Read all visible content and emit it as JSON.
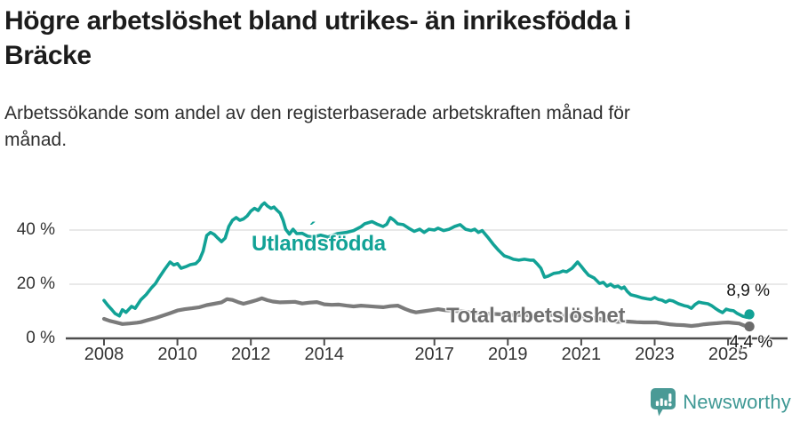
{
  "header": {
    "title_lines": [
      "Högre arbetslöshet bland utrikes- än inrikesfödda i",
      "Bräcke"
    ],
    "subtitle_lines": [
      "Arbetssökande som andel av den registerbaserade arbetskraften månad för",
      "månad."
    ]
  },
  "chart_data": {
    "type": "line",
    "title": "Högre arbetslöshet bland utrikes- än inrikesfödda i Bräcke",
    "subtitle": "Arbetssökande som andel av den registerbaserade arbetskraften månad för månad.",
    "xlabel": "",
    "ylabel": "",
    "x_axis": {
      "ticks": [
        2008,
        2010,
        2012,
        2014,
        2017,
        2019,
        2021,
        2023,
        2025
      ],
      "range": [
        2007.9,
        2025.8
      ]
    },
    "y_axis": {
      "ticks": [
        0,
        20,
        40
      ],
      "tick_labels": [
        "0 %",
        "20 %",
        "40 %"
      ],
      "gridlines": [
        20,
        40
      ],
      "range": [
        0,
        52
      ]
    },
    "grid": "horizontal-only",
    "legend_position": "inline-labels",
    "colors": {
      "utlandsfodda": "#12a296",
      "total": "#7b7b7b",
      "gridline": "#dcdcdc",
      "axis": "#4d4d4d"
    },
    "annotations": {
      "utlandsfodda_label": "Utlandsfödda",
      "accent_mark": "´",
      "total_label": "Total arbetslöshet",
      "end_label_utlandsfodda": "8,9 %",
      "end_label_total": "4,4 %"
    },
    "series": [
      {
        "name": "Utlandsfödda",
        "color": "#12a296",
        "end_value": 8.9,
        "points": [
          [
            2008.0,
            14.0
          ],
          [
            2008.1,
            12.3
          ],
          [
            2008.2,
            10.8
          ],
          [
            2008.3,
            9.2
          ],
          [
            2008.42,
            8.3
          ],
          [
            2008.5,
            10.6
          ],
          [
            2008.6,
            9.6
          ],
          [
            2008.75,
            11.8
          ],
          [
            2008.85,
            11.1
          ],
          [
            2009.0,
            14.2
          ],
          [
            2009.15,
            16.2
          ],
          [
            2009.3,
            18.8
          ],
          [
            2009.4,
            20.2
          ],
          [
            2009.5,
            22.4
          ],
          [
            2009.65,
            25.4
          ],
          [
            2009.8,
            28.2
          ],
          [
            2009.9,
            27.1
          ],
          [
            2010.0,
            27.6
          ],
          [
            2010.1,
            25.9
          ],
          [
            2010.25,
            26.6
          ],
          [
            2010.35,
            27.2
          ],
          [
            2010.5,
            27.6
          ],
          [
            2010.6,
            29.0
          ],
          [
            2010.7,
            32.2
          ],
          [
            2010.8,
            38.0
          ],
          [
            2010.9,
            39.1
          ],
          [
            2011.0,
            38.4
          ],
          [
            2011.1,
            37.0
          ],
          [
            2011.2,
            35.7
          ],
          [
            2011.3,
            37.0
          ],
          [
            2011.4,
            41.3
          ],
          [
            2011.5,
            43.6
          ],
          [
            2011.6,
            44.6
          ],
          [
            2011.7,
            43.6
          ],
          [
            2011.8,
            44.1
          ],
          [
            2011.9,
            45.2
          ],
          [
            2012.0,
            47.0
          ],
          [
            2012.1,
            48.0
          ],
          [
            2012.2,
            47.2
          ],
          [
            2012.3,
            49.2
          ],
          [
            2012.37,
            50.0
          ],
          [
            2012.45,
            48.9
          ],
          [
            2012.55,
            48.0
          ],
          [
            2012.63,
            48.5
          ],
          [
            2012.72,
            47.2
          ],
          [
            2012.8,
            46.2
          ],
          [
            2012.88,
            43.6
          ],
          [
            2012.95,
            40.3
          ],
          [
            2013.05,
            38.5
          ],
          [
            2013.15,
            40.3
          ],
          [
            2013.25,
            38.7
          ],
          [
            2013.4,
            38.8
          ],
          [
            2013.55,
            37.7
          ],
          [
            2013.7,
            37.4
          ],
          [
            2013.9,
            38.1
          ],
          [
            2014.1,
            37.4
          ],
          [
            2014.35,
            38.7
          ],
          [
            2014.6,
            39.1
          ],
          [
            2014.8,
            39.8
          ],
          [
            2015.0,
            41.2
          ],
          [
            2015.1,
            42.3
          ],
          [
            2015.3,
            43.1
          ],
          [
            2015.45,
            42.1
          ],
          [
            2015.6,
            41.3
          ],
          [
            2015.7,
            42.1
          ],
          [
            2015.8,
            44.6
          ],
          [
            2015.9,
            43.6
          ],
          [
            2016.0,
            42.3
          ],
          [
            2016.15,
            42.0
          ],
          [
            2016.3,
            40.7
          ],
          [
            2016.45,
            39.5
          ],
          [
            2016.6,
            40.3
          ],
          [
            2016.72,
            39.1
          ],
          [
            2016.85,
            40.3
          ],
          [
            2017.0,
            40.0
          ],
          [
            2017.1,
            40.7
          ],
          [
            2017.25,
            39.8
          ],
          [
            2017.4,
            40.3
          ],
          [
            2017.55,
            41.3
          ],
          [
            2017.7,
            42.0
          ],
          [
            2017.85,
            40.3
          ],
          [
            2018.0,
            39.8
          ],
          [
            2018.1,
            40.3
          ],
          [
            2018.2,
            39.1
          ],
          [
            2018.3,
            39.8
          ],
          [
            2018.45,
            37.4
          ],
          [
            2018.6,
            34.8
          ],
          [
            2018.75,
            32.5
          ],
          [
            2018.9,
            30.5
          ],
          [
            2019.05,
            29.8
          ],
          [
            2019.15,
            29.2
          ],
          [
            2019.3,
            28.9
          ],
          [
            2019.45,
            29.2
          ],
          [
            2019.6,
            28.9
          ],
          [
            2019.7,
            28.9
          ],
          [
            2019.8,
            27.5
          ],
          [
            2019.9,
            25.9
          ],
          [
            2020.0,
            22.6
          ],
          [
            2020.1,
            23.0
          ],
          [
            2020.25,
            24.0
          ],
          [
            2020.4,
            24.3
          ],
          [
            2020.5,
            24.9
          ],
          [
            2020.6,
            24.6
          ],
          [
            2020.75,
            25.9
          ],
          [
            2020.9,
            28.2
          ],
          [
            2021.0,
            26.6
          ],
          [
            2021.1,
            24.9
          ],
          [
            2021.2,
            23.3
          ],
          [
            2021.35,
            22.3
          ],
          [
            2021.5,
            20.3
          ],
          [
            2021.6,
            20.7
          ],
          [
            2021.7,
            19.3
          ],
          [
            2021.8,
            20.0
          ],
          [
            2021.9,
            19.0
          ],
          [
            2022.0,
            19.3
          ],
          [
            2022.1,
            18.4
          ],
          [
            2022.17,
            19.0
          ],
          [
            2022.25,
            17.4
          ],
          [
            2022.35,
            16.1
          ],
          [
            2022.5,
            15.6
          ],
          [
            2022.65,
            15.0
          ],
          [
            2022.8,
            14.6
          ],
          [
            2022.9,
            14.4
          ],
          [
            2023.0,
            15.1
          ],
          [
            2023.1,
            14.4
          ],
          [
            2023.2,
            14.1
          ],
          [
            2023.3,
            13.4
          ],
          [
            2023.4,
            14.1
          ],
          [
            2023.5,
            13.8
          ],
          [
            2023.65,
            12.8
          ],
          [
            2023.8,
            12.1
          ],
          [
            2023.9,
            11.8
          ],
          [
            2024.0,
            11.1
          ],
          [
            2024.1,
            12.5
          ],
          [
            2024.2,
            13.4
          ],
          [
            2024.3,
            13.1
          ],
          [
            2024.45,
            12.8
          ],
          [
            2024.55,
            12.1
          ],
          [
            2024.65,
            11.1
          ],
          [
            2024.75,
            10.2
          ],
          [
            2024.85,
            9.5
          ],
          [
            2024.95,
            10.8
          ],
          [
            2025.05,
            10.4
          ],
          [
            2025.15,
            10.2
          ],
          [
            2025.25,
            9.2
          ],
          [
            2025.4,
            8.2
          ],
          [
            2025.5,
            7.8
          ],
          [
            2025.58,
            8.9
          ]
        ]
      },
      {
        "name": "Total arbetslöshet",
        "color": "#7b7b7b",
        "end_value": 4.4,
        "points": [
          [
            2008.0,
            7.2
          ],
          [
            2008.15,
            6.5
          ],
          [
            2008.3,
            6.0
          ],
          [
            2008.5,
            5.3
          ],
          [
            2008.7,
            5.5
          ],
          [
            2008.9,
            5.8
          ],
          [
            2009.0,
            6.0
          ],
          [
            2009.2,
            6.8
          ],
          [
            2009.4,
            7.5
          ],
          [
            2009.6,
            8.4
          ],
          [
            2009.8,
            9.3
          ],
          [
            2010.0,
            10.3
          ],
          [
            2010.2,
            10.8
          ],
          [
            2010.4,
            11.1
          ],
          [
            2010.6,
            11.5
          ],
          [
            2010.8,
            12.3
          ],
          [
            2011.0,
            12.8
          ],
          [
            2011.2,
            13.3
          ],
          [
            2011.35,
            14.5
          ],
          [
            2011.5,
            14.2
          ],
          [
            2011.65,
            13.4
          ],
          [
            2011.8,
            12.8
          ],
          [
            2012.0,
            13.5
          ],
          [
            2012.15,
            14.1
          ],
          [
            2012.3,
            14.8
          ],
          [
            2012.45,
            14.1
          ],
          [
            2012.6,
            13.6
          ],
          [
            2012.8,
            13.3
          ],
          [
            2013.0,
            13.4
          ],
          [
            2013.2,
            13.5
          ],
          [
            2013.4,
            12.9
          ],
          [
            2013.6,
            13.2
          ],
          [
            2013.8,
            13.4
          ],
          [
            2014.0,
            12.6
          ],
          [
            2014.2,
            12.4
          ],
          [
            2014.4,
            12.5
          ],
          [
            2014.6,
            12.1
          ],
          [
            2014.8,
            11.8
          ],
          [
            2015.0,
            12.1
          ],
          [
            2015.2,
            11.9
          ],
          [
            2015.4,
            11.7
          ],
          [
            2015.6,
            11.5
          ],
          [
            2015.8,
            11.9
          ],
          [
            2016.0,
            12.1
          ],
          [
            2016.2,
            10.9
          ],
          [
            2016.35,
            10.1
          ],
          [
            2016.5,
            9.6
          ],
          [
            2016.7,
            10.0
          ],
          [
            2016.9,
            10.4
          ],
          [
            2017.1,
            10.8
          ],
          [
            2017.3,
            10.4
          ],
          [
            2017.5,
            10.2
          ],
          [
            2017.7,
            10.0
          ],
          [
            2017.9,
            9.7
          ],
          [
            2018.2,
            9.4
          ],
          [
            2018.5,
            9.1
          ],
          [
            2018.8,
            8.9
          ],
          [
            2019.1,
            8.7
          ],
          [
            2019.4,
            8.6
          ],
          [
            2019.7,
            8.5
          ],
          [
            2020.0,
            8.7
          ],
          [
            2020.3,
            8.6
          ],
          [
            2020.6,
            8.4
          ],
          [
            2020.9,
            8.2
          ],
          [
            2021.2,
            7.8
          ],
          [
            2021.5,
            7.2
          ],
          [
            2021.8,
            6.6
          ],
          [
            2022.0,
            6.1
          ],
          [
            2022.15,
            6.3
          ],
          [
            2022.3,
            6.2
          ],
          [
            2022.5,
            6.0
          ],
          [
            2022.7,
            5.9
          ],
          [
            2022.9,
            5.9
          ],
          [
            2023.05,
            5.9
          ],
          [
            2023.2,
            5.6
          ],
          [
            2023.4,
            5.2
          ],
          [
            2023.6,
            5.0
          ],
          [
            2023.8,
            4.9
          ],
          [
            2024.0,
            4.6
          ],
          [
            2024.2,
            4.9
          ],
          [
            2024.35,
            5.2
          ],
          [
            2024.5,
            5.4
          ],
          [
            2024.7,
            5.6
          ],
          [
            2024.85,
            5.8
          ],
          [
            2025.0,
            5.9
          ],
          [
            2025.15,
            5.7
          ],
          [
            2025.3,
            5.5
          ],
          [
            2025.45,
            4.7
          ],
          [
            2025.58,
            4.4
          ]
        ]
      }
    ]
  },
  "footer": {
    "brand": "Newsworthy",
    "logo_icon": "newsworthy-speech-bubble-bar-chart-icon",
    "brand_color": "#3e9894",
    "logo_fill": "#4a9a96"
  }
}
